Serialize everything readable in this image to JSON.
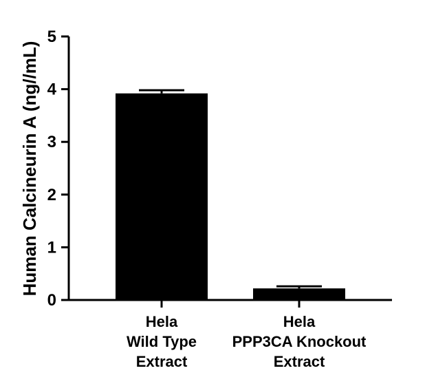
{
  "chart_data": {
    "type": "bar",
    "title": "",
    "xlabel": "",
    "ylabel": "Human Calcineurin A (ng//mL)",
    "ylim": [
      0,
      5
    ],
    "yticks": [
      0,
      1,
      2,
      3,
      4,
      5
    ],
    "categories": [
      [
        "Hela",
        "Wild Type",
        "Extract"
      ],
      [
        "Hela",
        "PPP3CA Knockout",
        "Extract"
      ]
    ],
    "values": [
      3.92,
      0.22
    ],
    "error_upper": [
      0.06,
      0.04
    ],
    "bar_color": "#000000",
    "grid": false,
    "legend": "none"
  }
}
